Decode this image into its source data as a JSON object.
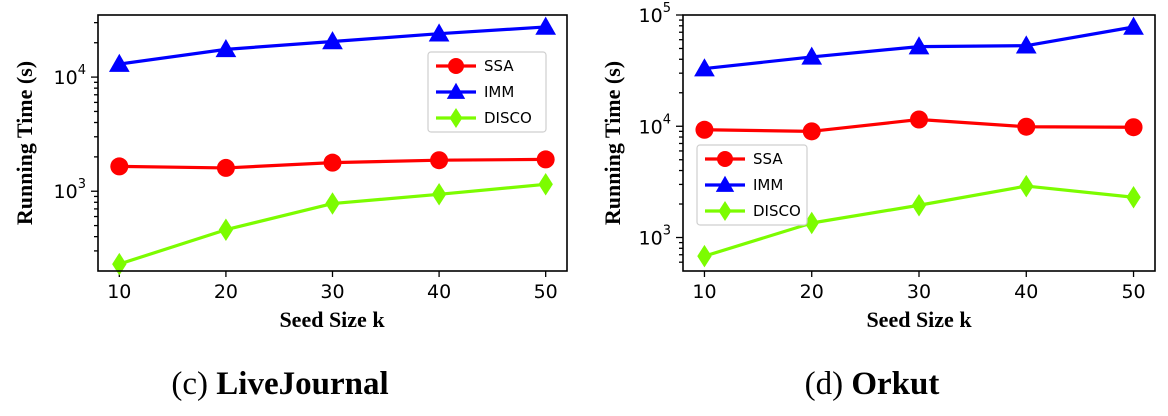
{
  "chart_data": [
    {
      "type": "line",
      "caption_prefix": "(c)",
      "caption_name": "LiveJournal",
      "xlabel": "Seed Size k",
      "ylabel": "Running Time (s)",
      "yscale": "log",
      "xlim": [
        8,
        52
      ],
      "ylim": [
        200,
        35000
      ],
      "x": [
        10,
        20,
        30,
        40,
        50
      ],
      "xticks": [
        "10",
        "20",
        "30",
        "40",
        "50"
      ],
      "yticks": [
        {
          "base": "10",
          "exp": "3",
          "value": 1000
        },
        {
          "base": "10",
          "exp": "4",
          "value": 10000
        }
      ],
      "legend_position": "upper-right",
      "series": [
        {
          "name": "SSA",
          "color": "#ff0000",
          "marker": "circle",
          "values": [
            1650,
            1600,
            1780,
            1870,
            1900
          ]
        },
        {
          "name": "IMM",
          "color": "#0000ff",
          "marker": "triangle",
          "values": [
            13000,
            17500,
            20500,
            24000,
            27500
          ]
        },
        {
          "name": "DISCO",
          "color": "#7cfc00",
          "marker": "diamond",
          "values": [
            230,
            460,
            780,
            940,
            1150
          ]
        }
      ]
    },
    {
      "type": "line",
      "caption_prefix": "(d)",
      "caption_name": "Orkut",
      "xlabel": "Seed Size k",
      "ylabel": "Running Time (s)",
      "yscale": "log",
      "xlim": [
        8,
        52
      ],
      "ylim": [
        500,
        100000
      ],
      "x": [
        10,
        20,
        30,
        40,
        50
      ],
      "xticks": [
        "10",
        "20",
        "30",
        "40",
        "50"
      ],
      "yticks": [
        {
          "base": "10",
          "exp": "3",
          "value": 1000
        },
        {
          "base": "10",
          "exp": "4",
          "value": 10000
        },
        {
          "base": "10",
          "exp": "5",
          "value": 100000
        }
      ],
      "legend_position": "center-left",
      "series": [
        {
          "name": "SSA",
          "color": "#ff0000",
          "marker": "circle",
          "values": [
            9300,
            9000,
            11500,
            9900,
            9800
          ]
        },
        {
          "name": "IMM",
          "color": "#0000ff",
          "marker": "triangle",
          "values": [
            33000,
            42000,
            52000,
            53000,
            78000
          ]
        },
        {
          "name": "DISCO",
          "color": "#7cfc00",
          "marker": "diamond",
          "values": [
            680,
            1350,
            1950,
            2900,
            2300
          ]
        }
      ]
    }
  ]
}
